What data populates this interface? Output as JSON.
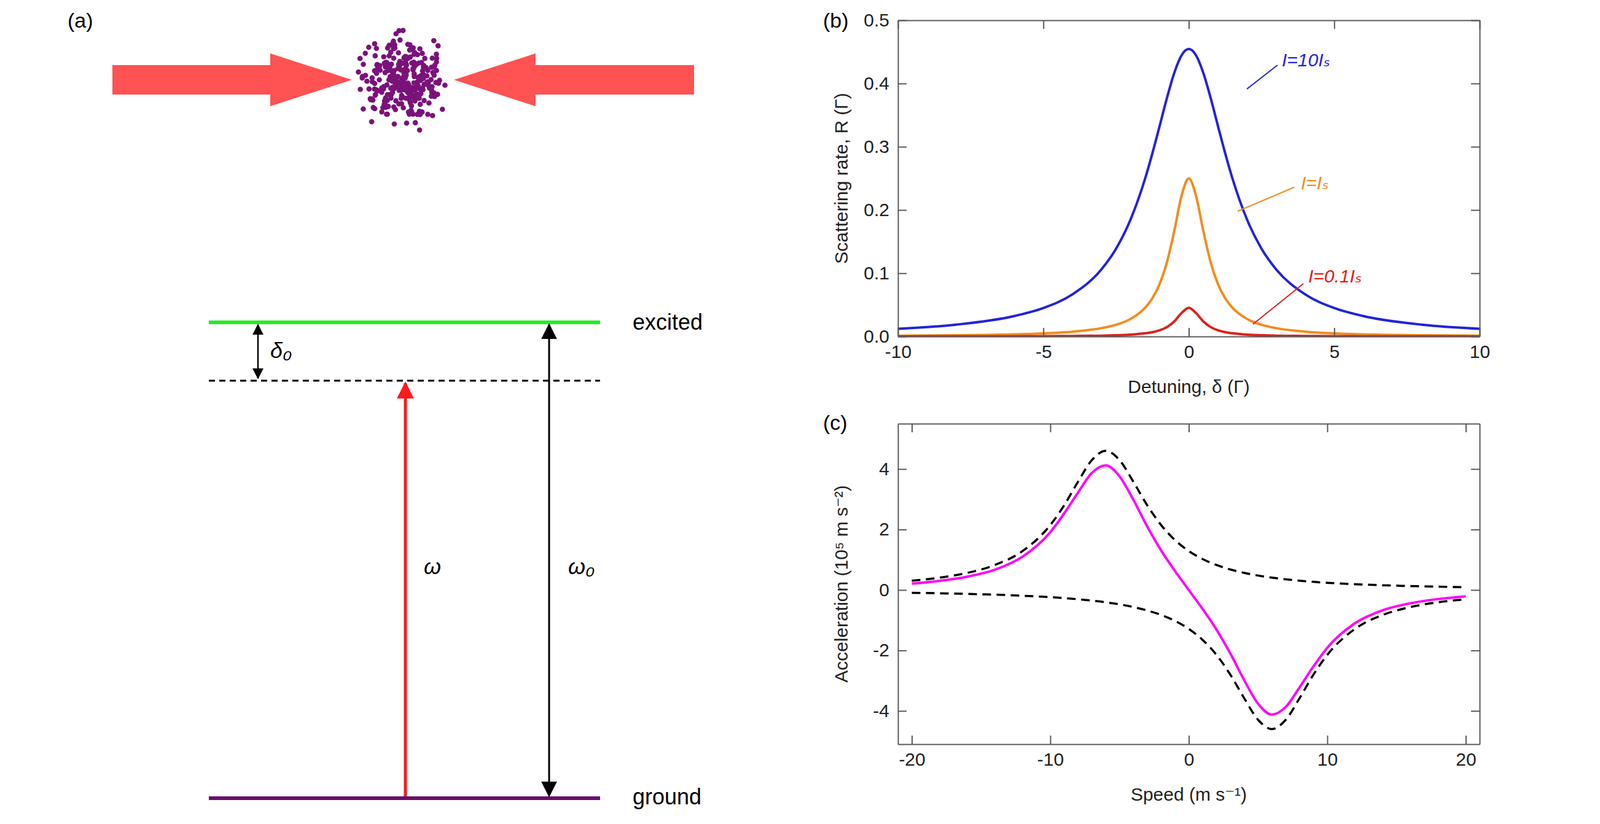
{
  "diagram": {
    "panel": "(a)",
    "excited_label": "excited",
    "ground_label": "ground",
    "detuning_label": "δ₀",
    "laser_label": "ω",
    "transition_label": "ω₀"
  },
  "chart_data": [
    {
      "panel": "(b)",
      "type": "line",
      "x_label": "Detuning, δ (Γ)",
      "y_label": "Scattering rate, R (Γ)",
      "x": [
        -10,
        -8,
        -6,
        -5,
        -4,
        -3,
        -2.5,
        -2,
        -1.5,
        -1.25,
        -1,
        -0.75,
        -0.5,
        -0.25,
        0,
        0.25,
        0.5,
        0.75,
        1,
        1.25,
        1.5,
        2,
        2.5,
        3,
        4,
        5,
        6,
        8,
        10
      ],
      "series": [
        {
          "name": "I=10Iₛ",
          "color": "#2323d9",
          "line_style": "solid",
          "values": [
            0.0122,
            0.0187,
            0.0323,
            0.045,
            0.0667,
            0.1064,
            0.1389,
            0.1852,
            0.25,
            0.2899,
            0.3333,
            0.3774,
            0.4167,
            0.4444,
            0.4545,
            0.4444,
            0.4167,
            0.3774,
            0.3333,
            0.2899,
            0.25,
            0.1852,
            0.1389,
            0.1064,
            0.0667,
            0.045,
            0.0323,
            0.0187,
            0.0122
          ]
        },
        {
          "name": "I=Iₛ",
          "color": "#f28c1f",
          "line_style": "solid",
          "values": [
            0.0012,
            0.0019,
            0.0034,
            0.0049,
            0.0076,
            0.0132,
            0.0185,
            0.0278,
            0.0455,
            0.0606,
            0.0833,
            0.1176,
            0.1667,
            0.2222,
            0.25,
            0.2222,
            0.1667,
            0.1176,
            0.0833,
            0.0606,
            0.0455,
            0.0278,
            0.0185,
            0.0132,
            0.0076,
            0.0049,
            0.0034,
            0.0019,
            0.0012
          ]
        },
        {
          "name": "I=0.1Iₛ",
          "color": "#e0201b",
          "line_style": "solid",
          "values": [
            0.0001,
            0.0002,
            0.0003,
            0.0005,
            0.0008,
            0.0013,
            0.0019,
            0.0029,
            0.005,
            0.0068,
            0.0098,
            0.0149,
            0.0238,
            0.037,
            0.0455,
            0.037,
            0.0238,
            0.0149,
            0.0098,
            0.0068,
            0.005,
            0.0029,
            0.0019,
            0.0013,
            0.0008,
            0.0005,
            0.0003,
            0.0002,
            0.0001
          ]
        }
      ],
      "xlim": [
        -10,
        10
      ],
      "ylim": [
        0,
        0.5
      ],
      "xticks": [
        -10,
        -5,
        0,
        5,
        10
      ],
      "yticks": [
        {
          "value": 0,
          "label": "0.0"
        },
        0.1,
        0.2,
        0.3,
        0.4,
        0.5
      ]
    },
    {
      "panel": "(c)",
      "type": "line",
      "x_label": "Speed (m s⁻¹)",
      "y_label": "Acceleration (10⁵ m s⁻²)",
      "x": [
        -20,
        -18,
        -16,
        -14,
        -12,
        -10,
        -9,
        -8,
        -7,
        -6,
        -5,
        -4,
        -3,
        -2,
        -1,
        0,
        1,
        2,
        3,
        4,
        5,
        6,
        7,
        8,
        9,
        10,
        12,
        14,
        16,
        18,
        20
      ],
      "series": [
        {
          "color": "#000000",
          "line_style": "dashed",
          "values": [
            0.307,
            0.407,
            0.565,
            0.826,
            1.288,
            2.147,
            2.8,
            3.578,
            4.293,
            4.6,
            4.293,
            3.578,
            2.8,
            2.147,
            1.651,
            1.288,
            1.022,
            0.826,
            0.678,
            0.565,
            0.477,
            0.407,
            0.352,
            0.307,
            0.269,
            0.238,
            0.191,
            0.156,
            0.129,
            0.109,
            0.093
          ]
        },
        {
          "color": "#000000",
          "line_style": "dashed",
          "values": [
            -0.093,
            -0.109,
            -0.129,
            -0.156,
            -0.191,
            -0.238,
            -0.269,
            -0.307,
            -0.352,
            -0.407,
            -0.477,
            -0.565,
            -0.678,
            -0.826,
            -1.022,
            -1.288,
            -1.651,
            -2.147,
            -2.8,
            -3.578,
            -4.293,
            -4.6,
            -4.293,
            -3.578,
            -2.8,
            -2.147,
            -1.288,
            -0.826,
            -0.565,
            -0.407,
            -0.307
          ]
        },
        {
          "color": "#ff00ff",
          "line_style": "solid",
          "values": [
            0.21,
            0.3,
            0.44,
            0.67,
            1.1,
            1.91,
            2.53,
            3.22,
            3.87,
            4.12,
            3.76,
            2.98,
            2.1,
            1.31,
            0.63,
            0,
            -0.63,
            -1.31,
            -2.1,
            -2.98,
            -3.76,
            -4.12,
            -3.87,
            -3.22,
            -2.53,
            -1.91,
            -1.1,
            -0.67,
            -0.44,
            -0.3,
            -0.21
          ]
        }
      ],
      "xlim": [
        -21,
        21
      ],
      "ylim": [
        -5.1,
        5.5
      ],
      "xticks": [
        -20,
        -10,
        0,
        10,
        20
      ],
      "yticks": [
        -4,
        -2,
        0,
        2,
        4
      ]
    }
  ]
}
